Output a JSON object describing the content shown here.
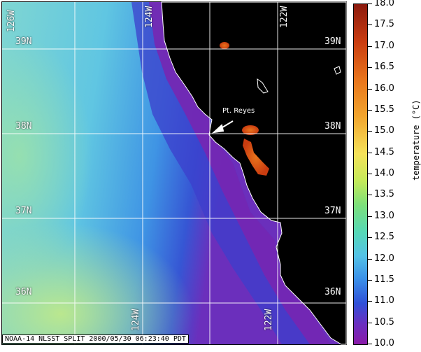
{
  "map": {
    "lat_labels": [
      "39N",
      "38N",
      "37N",
      "36N"
    ],
    "lon_labels": [
      "126W",
      "124W",
      "122W"
    ],
    "annotation": "Pt. Reyes",
    "caption": "NOAA-14 NLSST SPLIT 2000/05/30 06:23:40 PDT",
    "colors": {
      "land": "#000000",
      "grid": "#ffffff",
      "coast": "#ffffff"
    }
  },
  "colorbar": {
    "title": "temperature (°C)",
    "min": 10.0,
    "max": 18.0,
    "tick_labels": [
      "18.0",
      "17.5",
      "17.0",
      "16.5",
      "16.0",
      "15.5",
      "15.0",
      "14.5",
      "14.0",
      "13.5",
      "13.0",
      "12.5",
      "12.0",
      "11.5",
      "11.0",
      "10.5",
      "10.0"
    ]
  }
}
